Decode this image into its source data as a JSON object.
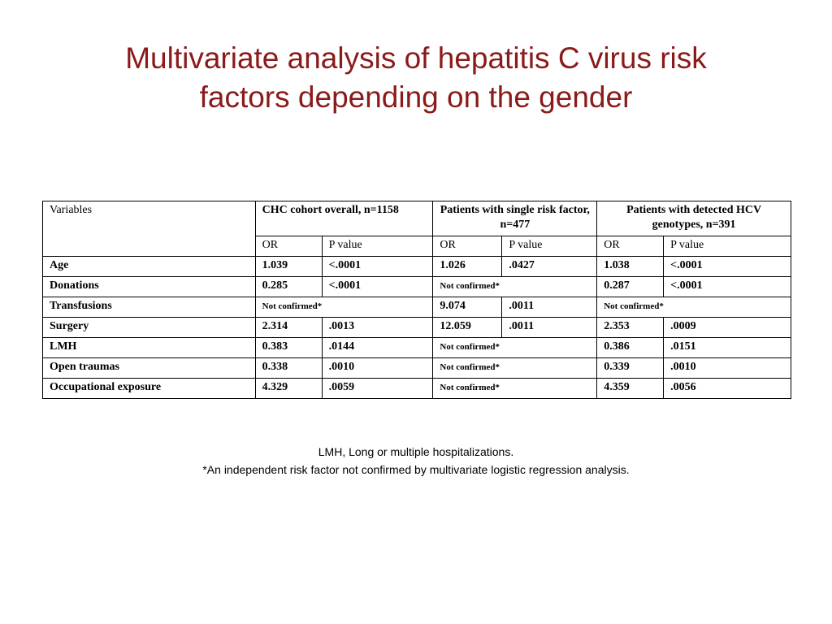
{
  "title_lines": [
    "Multivariate analysis of hepatitis C virus risk",
    "factors depending on the gender"
  ],
  "table": {
    "variables_header": "Variables",
    "groups": [
      "CHC cohort overall, n=1158",
      "Patients with single risk factor, n=477",
      "Patients with detected HCV genotypes, n=391"
    ],
    "sub_or": "OR",
    "sub_p": "P value",
    "not_confirmed": "Not confirmed*",
    "rows": [
      {
        "label": "Age",
        "g1_or": "1.039",
        "g1_p": "<.0001",
        "g2_or": "1.026",
        "g2_p": ".0427",
        "g3_or": "1.038",
        "g3_p": "<.0001"
      },
      {
        "label": "Donations",
        "g1_or": "0.285",
        "g1_p": "<.0001",
        "g2": "Not confirmed*",
        "g3_or": "0.287",
        "g3_p": "<.0001"
      },
      {
        "label": "Transfusions",
        "g1": "Not confirmed*",
        "g2_or": "9.074",
        "g2_p": ".0011",
        "g3": "Not confirmed*"
      },
      {
        "label": "Surgery",
        "g1_or": "2.314",
        "g1_p": ".0013",
        "g2_or": "12.059",
        "g2_p": ".0011",
        "g3_or": "2.353",
        "g3_p": ".0009"
      },
      {
        "label": "LMH",
        "g1_or": "0.383",
        "g1_p": ".0144",
        "g2": "Not confirmed*",
        "g3_or": "0.386",
        "g3_p": ".0151"
      },
      {
        "label": "Open traumas",
        "g1_or": "0.338",
        "g1_p": ".0010",
        "g2": "Not confirmed*",
        "g3_or": "0.339",
        "g3_p": ".0010"
      },
      {
        "label": "Occupational exposure",
        "g1_or": "4.329",
        "g1_p": ".0059",
        "g2": "Not confirmed*",
        "g3_or": "4.359",
        "g3_p": ".0056"
      }
    ]
  },
  "footnotes": [
    "LMH, Long or multiple hospitalizations.",
    "*An independent risk factor not confirmed by multivariate logistic regression analysis."
  ]
}
